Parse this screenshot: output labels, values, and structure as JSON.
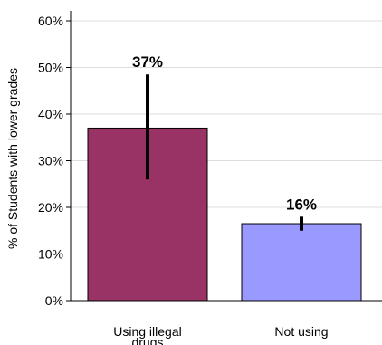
{
  "chart_data": {
    "type": "bar",
    "ylabel": "% of Students with lower grades",
    "xlabel": "",
    "ylim": [
      0,
      60
    ],
    "yticks": [
      0,
      10,
      20,
      30,
      40,
      50,
      60
    ],
    "ytick_labels": [
      "0%",
      "10%",
      "20%",
      "30%",
      "40%",
      "50%",
      "60%"
    ],
    "grid": "horizontal",
    "categories": [
      "Using illegal drugs",
      "Not using"
    ],
    "values": [
      37,
      16.5
    ],
    "data_labels": [
      "37%",
      "16%"
    ],
    "error_low": [
      26,
      15
    ],
    "error_high": [
      48.5,
      18
    ],
    "colors": [
      "#993366",
      "#9999ff"
    ]
  }
}
